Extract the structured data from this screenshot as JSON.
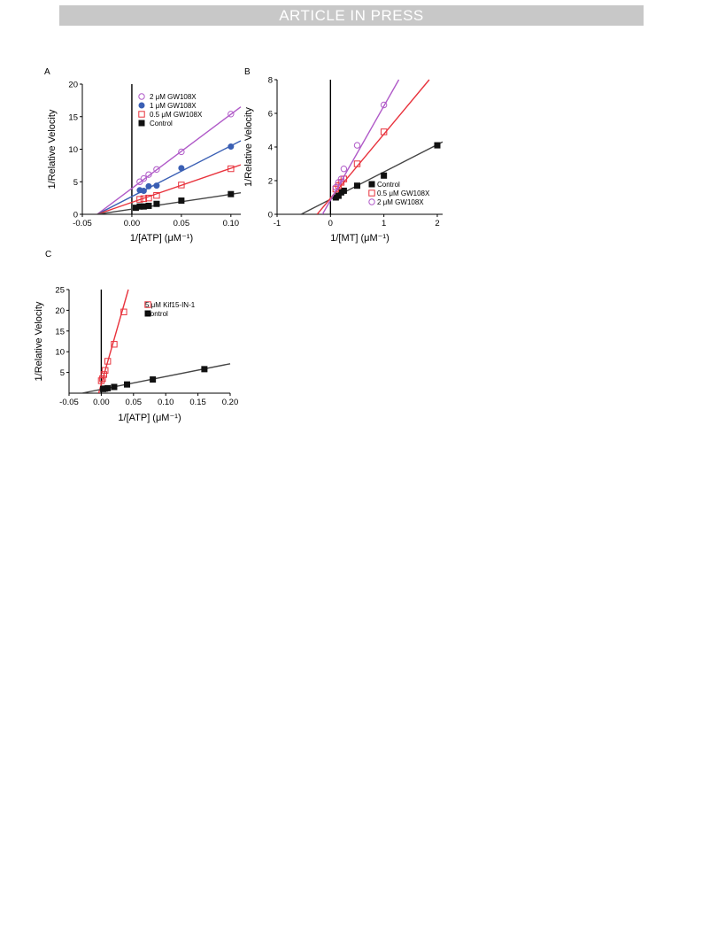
{
  "header": {
    "banner_text": "ARTICLE IN PRESS"
  },
  "chart_data": [
    {
      "panel": "A",
      "type": "scatter",
      "xlabel": "1/[ATP] (μM⁻¹)",
      "ylabel": "1/Relative Velocity",
      "xlim": [
        -0.05,
        0.11
      ],
      "ylim": [
        0,
        20
      ],
      "xticks": [
        "-0.05",
        "0.00",
        "0.05",
        "0.10"
      ],
      "yticks": [
        "0",
        "5",
        "10",
        "15",
        "20"
      ],
      "legend_position": "top-left",
      "series": [
        {
          "name": "2 μM GW108X",
          "marker": "open-circle",
          "color": "#b05ac8",
          "x": [
            0.008,
            0.012,
            0.017,
            0.025,
            0.05,
            0.1
          ],
          "y": [
            5.0,
            5.5,
            6.1,
            6.9,
            9.6,
            15.4
          ],
          "fit": [
            [
              -0.035,
              0
            ],
            [
              0.11,
              16.5
            ]
          ]
        },
        {
          "name": "1 μM GW108X",
          "marker": "filled-circle",
          "color": "#3a5fb4",
          "x": [
            0.008,
            0.012,
            0.017,
            0.025,
            0.05,
            0.1
          ],
          "y": [
            3.7,
            3.6,
            4.3,
            4.4,
            7.1,
            10.4
          ],
          "fit": [
            [
              -0.035,
              0
            ],
            [
              0.11,
              11.3
            ]
          ]
        },
        {
          "name": "0.5 μM GW108X",
          "marker": "open-square",
          "color": "#e8323c",
          "x": [
            0.008,
            0.012,
            0.017,
            0.025,
            0.05,
            0.1
          ],
          "y": [
            2.3,
            2.4,
            2.5,
            2.9,
            4.5,
            7.0
          ],
          "fit": [
            [
              -0.035,
              0
            ],
            [
              0.11,
              7.6
            ]
          ]
        },
        {
          "name": "Control",
          "marker": "filled-square",
          "color": "#111111",
          "x": [
            0.004,
            0.008,
            0.012,
            0.017,
            0.025,
            0.05,
            0.1
          ],
          "y": [
            1.0,
            1.2,
            1.2,
            1.3,
            1.6,
            2.1,
            3.1
          ],
          "fit": [
            [
              -0.035,
              0
            ],
            [
              0.11,
              3.3
            ]
          ],
          "fit_color": "#444444"
        }
      ]
    },
    {
      "panel": "B",
      "type": "scatter",
      "xlabel": "1/[MT] (μM⁻¹)",
      "ylabel": "1/Relative Velocity",
      "xlim": [
        -1,
        2.1
      ],
      "ylim": [
        0,
        8
      ],
      "xticks": [
        "-1",
        "0",
        "1",
        "2"
      ],
      "yticks": [
        "0",
        "2",
        "4",
        "6",
        "8"
      ],
      "legend_position": "bottom-right",
      "series": [
        {
          "name": "Control",
          "marker": "filled-square",
          "color": "#111111",
          "x": [
            0.1,
            0.15,
            0.2,
            0.25,
            0.5,
            1.0,
            2.0
          ],
          "y": [
            1.0,
            1.1,
            1.3,
            1.4,
            1.7,
            2.3,
            4.1
          ],
          "fit": [
            [
              -0.55,
              0
            ],
            [
              2.1,
              4.3
            ]
          ],
          "fit_color": "#444444"
        },
        {
          "name": "0.5 μM GW108X",
          "marker": "open-square",
          "color": "#e8323c",
          "x": [
            0.1,
            0.15,
            0.2,
            0.25,
            0.5,
            1.0
          ],
          "y": [
            1.5,
            1.7,
            1.9,
            2.1,
            3.0,
            4.9
          ],
          "fit": [
            [
              -0.25,
              0
            ],
            [
              1.85,
              8.0
            ]
          ]
        },
        {
          "name": "2 μM GW108X",
          "marker": "open-circle",
          "color": "#b05ac8",
          "x": [
            0.1,
            0.15,
            0.2,
            0.25,
            0.5,
            1.0
          ],
          "y": [
            1.6,
            1.9,
            2.1,
            2.7,
            4.1,
            6.5
          ],
          "fit": [
            [
              -0.15,
              0
            ],
            [
              1.28,
              8.0
            ]
          ]
        }
      ]
    },
    {
      "panel": "C",
      "type": "scatter",
      "xlabel": "1/[ATP] (μM⁻¹)",
      "ylabel": "1/Relative Velocity",
      "xlim": [
        -0.05,
        0.2
      ],
      "ylim": [
        0,
        25
      ],
      "xticks": [
        "-0.05",
        "0.00",
        "0.05",
        "0.10",
        "0.15",
        "0.20"
      ],
      "yticks": [
        "5",
        "10",
        "15",
        "20",
        "25"
      ],
      "legend_position": "top-right",
      "series": [
        {
          "name": "5 μM Kif15-IN-1",
          "marker": "open-square",
          "color": "#e8323c",
          "x": [
            0.0,
            0.002,
            0.004,
            0.006,
            0.01,
            0.02,
            0.035
          ],
          "y": [
            3.0,
            3.5,
            4.5,
            5.5,
            7.7,
            11.8,
            19.6
          ],
          "fit": [
            [
              -0.004,
              0
            ],
            [
              0.042,
              25
            ]
          ]
        },
        {
          "name": "Control",
          "marker": "filled-square",
          "color": "#111111",
          "x": [
            0.003,
            0.006,
            0.01,
            0.02,
            0.04,
            0.08,
            0.16
          ],
          "y": [
            1.0,
            1.1,
            1.2,
            1.5,
            2.1,
            3.3,
            5.8
          ],
          "fit": [
            [
              -0.03,
              0
            ],
            [
              0.2,
              7.1
            ]
          ],
          "fit_color": "#444444"
        }
      ]
    }
  ]
}
